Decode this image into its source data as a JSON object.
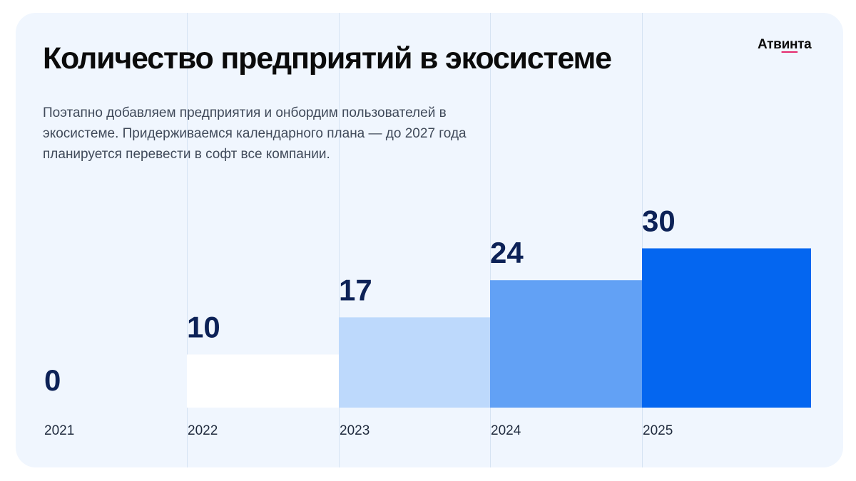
{
  "slide": {
    "title": "Количество предприятий в экосистеме",
    "subtitle": "Поэтапно добавляем предприятия и онбордим пользователей в экосистеме. Придерживаемся календарного плана — до 2027 года планируется перевести в софт все компании.",
    "logo": {
      "part1": "Атв",
      "part2": "ин",
      "part3": "та"
    }
  },
  "chart_data": {
    "type": "bar",
    "categories": [
      "2021",
      "2022",
      "2023",
      "2024",
      "2025"
    ],
    "values": [
      0,
      10,
      17,
      24,
      30
    ],
    "value_labels": [
      "0",
      "10",
      "17",
      "24",
      "30"
    ],
    "bar_colors": [
      "#ffffff",
      "#ffffff",
      "#bdd9fc",
      "#62a1f5",
      "#0466f0"
    ],
    "ylim": [
      0,
      30
    ],
    "grid": false,
    "legend": "none"
  }
}
